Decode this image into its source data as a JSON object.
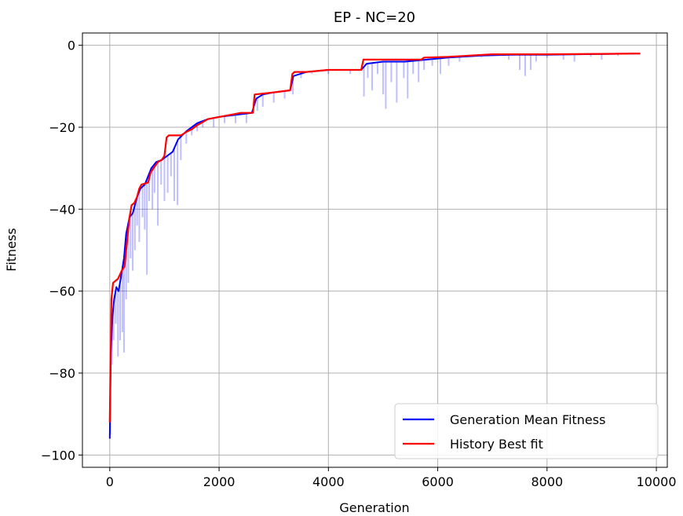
{
  "chart_data": {
    "type": "line",
    "title": "EP - NC=20",
    "xlabel": "Generation",
    "ylabel": "Fitness",
    "xlim": [
      -500,
      10200
    ],
    "ylim": [
      -103,
      3
    ],
    "xticks": [
      0,
      2000,
      4000,
      6000,
      8000,
      10000
    ],
    "yticks": [
      0,
      -20,
      -40,
      -60,
      -80,
      -100
    ],
    "xtick_labels": [
      "0",
      "2000",
      "4000",
      "6000",
      "8000",
      "10000"
    ],
    "ytick_labels": [
      "0",
      "−20",
      "−40",
      "−60",
      "−80",
      "−100"
    ],
    "grid": true,
    "legend": {
      "placement": "lower-right"
    },
    "series": [
      {
        "name": "Generation Mean Fitness",
        "color": "#0000ff",
        "points": [
          [
            0,
            -96
          ],
          [
            20,
            -75
          ],
          [
            50,
            -66
          ],
          [
            80,
            -62
          ],
          [
            120,
            -59
          ],
          [
            160,
            -60
          ],
          [
            200,
            -57
          ],
          [
            260,
            -52
          ],
          [
            300,
            -46
          ],
          [
            360,
            -42
          ],
          [
            420,
            -41
          ],
          [
            500,
            -37
          ],
          [
            560,
            -35
          ],
          [
            640,
            -34
          ],
          [
            700,
            -32
          ],
          [
            760,
            -30
          ],
          [
            850,
            -28.5
          ],
          [
            950,
            -28
          ],
          [
            1050,
            -27
          ],
          [
            1150,
            -26
          ],
          [
            1250,
            -23
          ],
          [
            1400,
            -21
          ],
          [
            1600,
            -19
          ],
          [
            1800,
            -18
          ],
          [
            2000,
            -17.5
          ],
          [
            2300,
            -17
          ],
          [
            2600,
            -16.5
          ],
          [
            2680,
            -13
          ],
          [
            2800,
            -12
          ],
          [
            3000,
            -11.5
          ],
          [
            3300,
            -11
          ],
          [
            3360,
            -7.5
          ],
          [
            3600,
            -6.5
          ],
          [
            4000,
            -6
          ],
          [
            4600,
            -6
          ],
          [
            4700,
            -4.5
          ],
          [
            5000,
            -4
          ],
          [
            5400,
            -4
          ],
          [
            5800,
            -3.5
          ],
          [
            6200,
            -3
          ],
          [
            6800,
            -2.5
          ],
          [
            7400,
            -2.3
          ],
          [
            8000,
            -2.3
          ],
          [
            8600,
            -2.2
          ],
          [
            9200,
            -2.1
          ],
          [
            9700,
            -2
          ]
        ]
      },
      {
        "name": "History Best fit",
        "color": "#ff0000",
        "points": [
          [
            0,
            -92
          ],
          [
            30,
            -62
          ],
          [
            60,
            -58
          ],
          [
            150,
            -57
          ],
          [
            220,
            -55
          ],
          [
            270,
            -54
          ],
          [
            300,
            -50
          ],
          [
            330,
            -46
          ],
          [
            360,
            -42
          ],
          [
            400,
            -39
          ],
          [
            450,
            -38.5
          ],
          [
            500,
            -37
          ],
          [
            540,
            -35
          ],
          [
            580,
            -34
          ],
          [
            700,
            -33.5
          ],
          [
            750,
            -31
          ],
          [
            800,
            -30
          ],
          [
            880,
            -28.5
          ],
          [
            950,
            -28
          ],
          [
            1000,
            -27
          ],
          [
            1040,
            -22.5
          ],
          [
            1080,
            -22
          ],
          [
            1300,
            -22
          ],
          [
            1420,
            -21
          ],
          [
            1500,
            -20.5
          ],
          [
            1600,
            -19.5
          ],
          [
            1800,
            -18
          ],
          [
            2000,
            -17.5
          ],
          [
            2400,
            -16.5
          ],
          [
            2620,
            -16.5
          ],
          [
            2650,
            -12
          ],
          [
            3000,
            -11.5
          ],
          [
            3300,
            -11
          ],
          [
            3340,
            -7
          ],
          [
            3380,
            -6.5
          ],
          [
            3600,
            -6.5
          ],
          [
            4000,
            -6
          ],
          [
            4600,
            -6
          ],
          [
            4640,
            -3.5
          ],
          [
            5000,
            -3.5
          ],
          [
            5700,
            -3.5
          ],
          [
            5750,
            -3
          ],
          [
            6200,
            -2.8
          ],
          [
            6600,
            -2.5
          ],
          [
            7000,
            -2.2
          ],
          [
            8000,
            -2.2
          ],
          [
            9000,
            -2.1
          ],
          [
            9700,
            -2
          ]
        ]
      }
    ],
    "fluctuation_band": {
      "series": "Generation Mean Fitness",
      "color": "#0000ff",
      "dips": [
        [
          10,
          -95
        ],
        [
          40,
          -78
        ],
        [
          70,
          -72
        ],
        [
          110,
          -68
        ],
        [
          150,
          -76
        ],
        [
          190,
          -72
        ],
        [
          230,
          -70
        ],
        [
          260,
          -75
        ],
        [
          300,
          -62
        ],
        [
          340,
          -58
        ],
        [
          380,
          -52
        ],
        [
          420,
          -55
        ],
        [
          460,
          -50
        ],
        [
          500,
          -44
        ],
        [
          540,
          -48
        ],
        [
          600,
          -42
        ],
        [
          640,
          -45
        ],
        [
          680,
          -56
        ],
        [
          720,
          -38
        ],
        [
          780,
          -40
        ],
        [
          820,
          -36
        ],
        [
          880,
          -44
        ],
        [
          940,
          -34
        ],
        [
          1000,
          -38
        ],
        [
          1060,
          -36
        ],
        [
          1120,
          -32
        ],
        [
          1180,
          -38
        ],
        [
          1240,
          -39
        ],
        [
          1300,
          -28
        ],
        [
          1400,
          -24
        ],
        [
          1500,
          -22
        ],
        [
          1600,
          -21
        ],
        [
          1700,
          -20
        ],
        [
          1900,
          -20
        ],
        [
          2100,
          -19
        ],
        [
          2300,
          -19
        ],
        [
          2500,
          -19
        ],
        [
          2700,
          -16
        ],
        [
          2800,
          -15
        ],
        [
          3000,
          -14
        ],
        [
          3200,
          -13
        ],
        [
          3350,
          -12
        ],
        [
          3500,
          -8
        ],
        [
          3700,
          -7
        ],
        [
          4000,
          -7
        ],
        [
          4400,
          -7
        ],
        [
          4650,
          -12.5
        ],
        [
          4720,
          -8
        ],
        [
          4800,
          -11
        ],
        [
          4900,
          -7
        ],
        [
          5000,
          -12
        ],
        [
          5050,
          -15.5
        ],
        [
          5150,
          -9
        ],
        [
          5250,
          -14
        ],
        [
          5380,
          -8
        ],
        [
          5450,
          -13
        ],
        [
          5550,
          -7
        ],
        [
          5650,
          -9
        ],
        [
          5750,
          -6
        ],
        [
          5900,
          -5
        ],
        [
          6050,
          -7
        ],
        [
          6200,
          -5
        ],
        [
          6400,
          -4
        ],
        [
          6800,
          -3
        ],
        [
          7300,
          -3.5
        ],
        [
          7500,
          -6
        ],
        [
          7600,
          -7.5
        ],
        [
          7700,
          -6
        ],
        [
          7800,
          -4
        ],
        [
          8000,
          -3
        ],
        [
          8300,
          -3.5
        ],
        [
          8500,
          -4
        ],
        [
          8800,
          -2.8
        ],
        [
          9000,
          -3.5
        ],
        [
          9300,
          -2.6
        ],
        [
          9700,
          -2.3
        ]
      ]
    }
  }
}
